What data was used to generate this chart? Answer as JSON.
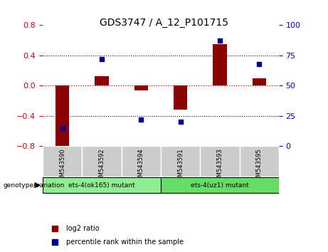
{
  "title": "GDS3747 / A_12_P101715",
  "samples": [
    "GSM543590",
    "GSM543592",
    "GSM543594",
    "GSM543591",
    "GSM543593",
    "GSM543595"
  ],
  "log2_ratio": [
    -0.85,
    0.13,
    -0.06,
    -0.32,
    0.55,
    0.1
  ],
  "percentile_rank": [
    15,
    72,
    22,
    20,
    87,
    68
  ],
  "groups": [
    {
      "label": "ets-4(ok165) mutant",
      "indices": [
        0,
        1,
        2
      ],
      "color": "#90ee90"
    },
    {
      "label": "ets-4(uz1) mutant",
      "indices": [
        3,
        4,
        5
      ],
      "color": "#66dd66"
    }
  ],
  "ylim_left": [
    -0.8,
    0.8
  ],
  "ylim_right": [
    0,
    100
  ],
  "yticks_left": [
    -0.8,
    -0.4,
    0,
    0.4,
    0.8
  ],
  "yticks_right": [
    0,
    25,
    50,
    75,
    100
  ],
  "bar_color": "#8B0000",
  "dot_color": "#00008B",
  "zero_line_color": "#cc0000",
  "grid_color": "#000000",
  "bg_plot": "#ffffff",
  "bg_xtick": "#cccccc",
  "left_label_color": "#cc0000",
  "right_label_color": "#0000cc",
  "legend_bar_label": "log2 ratio",
  "legend_dot_label": "percentile rank within the sample",
  "genotype_label": "genotype/variation"
}
